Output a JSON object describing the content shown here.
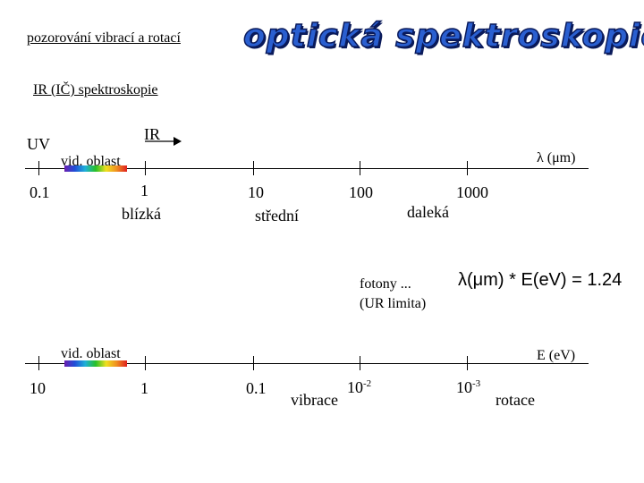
{
  "header": {
    "subtitle": "pozorování vibrací a rotací",
    "title": "optická spektroskopie"
  },
  "section_title": "IR (IČ) spektroskopie",
  "top_axis": {
    "uv_label": "UV",
    "ir_label": "IR",
    "vis_label": "vid. oblast",
    "unit_label": "λ (μm)",
    "ticks": [
      "0.1",
      "1",
      "10",
      "100",
      "1000"
    ],
    "region_labels": [
      "blízká",
      "střední",
      "daleká"
    ]
  },
  "note": {
    "line1": "fotony ...",
    "line2": "(UR limita)",
    "formula_lhs": "λ(μm)",
    "formula_op": "*",
    "formula_rhs": "E(eV) = 1.24"
  },
  "bottom_axis": {
    "vis_label": "vid. oblast",
    "unit_label": "E (eV)",
    "ticks": [
      "10",
      "1",
      "0.1"
    ],
    "tick_1e2_base": "10",
    "tick_1e2_exp": "-2",
    "tick_1e3_base": "10",
    "tick_1e3_exp": "-3",
    "region_labels": [
      "vibrace",
      "rotace"
    ]
  }
}
